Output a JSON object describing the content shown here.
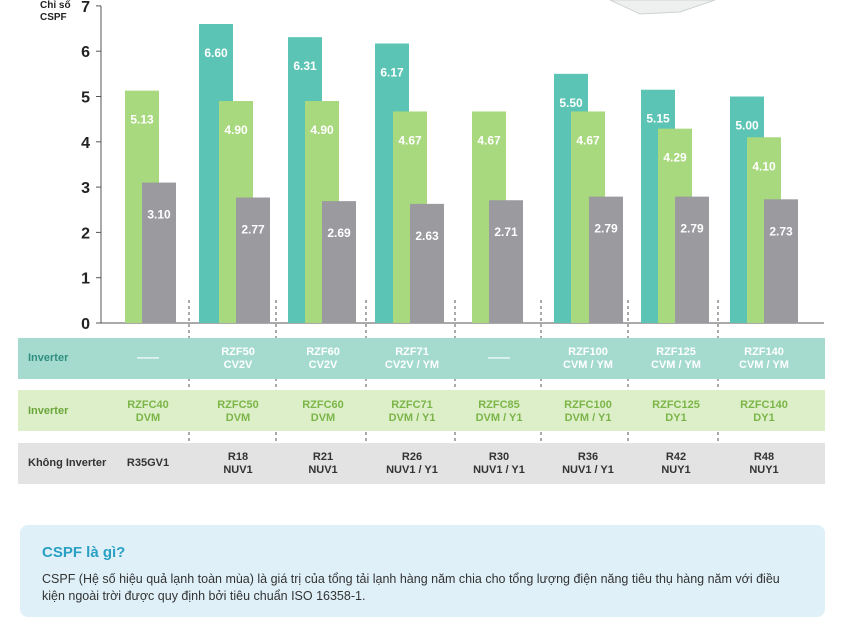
{
  "colors": {
    "teal": "#5cc4b4",
    "green": "#a9d97e",
    "gray": "#9a9a9f",
    "row_teal": "#a5dbcf",
    "row_green": "#ddefc9",
    "row_gray": "#e3e3e3",
    "accent": "#2aa0c4"
  },
  "chart_data": {
    "type": "bar",
    "ylabel": "Chỉ số\nCSPF",
    "ylim": [
      0,
      7
    ],
    "yticks": [
      "0",
      "1",
      "2",
      "3",
      "4",
      "5",
      "6",
      "7"
    ],
    "groups": [
      {
        "teal": null,
        "green": 5.13,
        "gray": 3.1
      },
      {
        "teal": 6.6,
        "green": 4.9,
        "gray": 2.77
      },
      {
        "teal": 6.31,
        "green": 4.9,
        "gray": 2.69
      },
      {
        "teal": 6.17,
        "green": 4.67,
        "gray": 2.63
      },
      {
        "teal": null,
        "green": 4.67,
        "gray": 2.71
      },
      {
        "teal": 5.5,
        "green": 4.67,
        "gray": 2.79
      },
      {
        "teal": 5.15,
        "green": 4.29,
        "gray": 2.79
      },
      {
        "teal": 5.0,
        "green": 4.1,
        "gray": 2.73
      }
    ],
    "value_labels": {
      "teal": [
        null,
        "6.60",
        "6.31",
        "6.17",
        null,
        "5.50",
        "5.15",
        "5.00"
      ],
      "green": [
        "5.13",
        "4.90",
        "4.90",
        "4.67",
        "4.67",
        "4.67",
        "4.29",
        "4.10"
      ],
      "gray": [
        "3.10",
        "2.77",
        "2.69",
        "2.63",
        "2.71",
        "2.79",
        "2.79",
        "2.73"
      ]
    }
  },
  "table": {
    "rows": [
      {
        "label": "Inverter",
        "cells": [
          "——",
          "RZF50\nCV2V",
          "RZF60\nCV2V",
          "RZF71\nCV2V / YM",
          "——",
          "RZF100\nCVM / YM",
          "RZF125\nCVM / YM",
          "RZF140\nCVM / YM"
        ]
      },
      {
        "label": "Inverter",
        "cells": [
          "RZFC40\nDVM",
          "RZFC50\nDVM",
          "RZFC60\nDVM",
          "RZFC71\nDVM / Y1",
          "RZFC85\nDVM / Y1",
          "RZFC100\nDVM / Y1",
          "RZFC125\nDY1",
          "RZFC140\nDY1"
        ]
      },
      {
        "label": "Không Inverter",
        "cells": [
          "R35GV1",
          "R18\nNUV1",
          "R21\nNUV1",
          "R26\nNUV1 / Y1",
          "R30\nNUV1 / Y1",
          "R36\nNUV1 / Y1",
          "R42\nNUY1",
          "R48\nNUY1"
        ]
      }
    ]
  },
  "info": {
    "title": "CSPF là gì?",
    "text": "CSPF (Hệ số hiệu quả lạnh toàn mùa) là giá trị của tổng tải lạnh hàng năm chia cho tổng lượng điện năng tiêu thụ hàng năm với điều kiện ngoài trời được quy định bởi tiêu chuẩn ISO 16358-1."
  }
}
